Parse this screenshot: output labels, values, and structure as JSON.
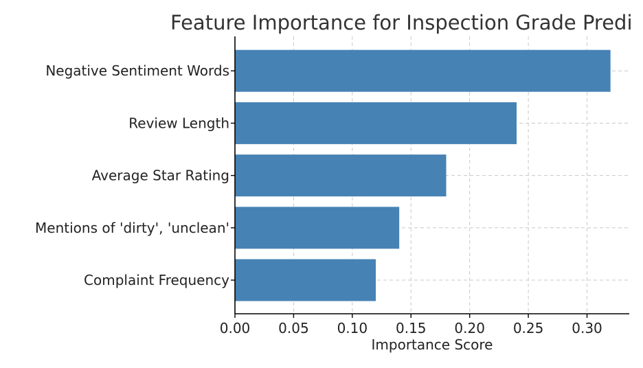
{
  "chart_data": {
    "type": "bar",
    "orientation": "horizontal",
    "title": "Feature Importance for Inspection Grade Predi",
    "xlabel": "Importance Score",
    "ylabel": "",
    "categories": [
      "Complaint Frequency",
      "Mentions of 'dirty', 'unclean'",
      "Average Star Rating",
      "Review Length",
      "Negative Sentiment Words"
    ],
    "values": [
      0.12,
      0.14,
      0.18,
      0.24,
      0.32
    ],
    "xlim": [
      0,
      0.336
    ],
    "xticks": [
      "0.00",
      "0.05",
      "0.10",
      "0.15",
      "0.20",
      "0.25",
      "0.30"
    ],
    "grid": true,
    "bar_color": "#4682b4",
    "grid_color": "#c8c8c8"
  }
}
